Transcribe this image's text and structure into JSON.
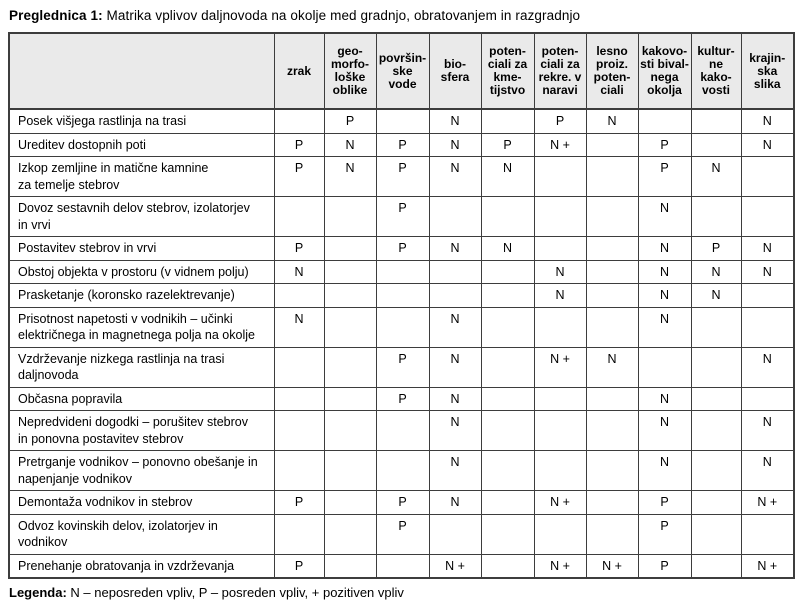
{
  "title": {
    "prefix": "Preglednica 1:",
    "text": " Matrika vplivov daljnovoda na okolje med gradnjo, obratovanjem in razgradnjo"
  },
  "colors": {
    "header_bg": "#eaeaea",
    "border": "#3d3d3d",
    "text": "#000000",
    "page_bg": "#ffffff"
  },
  "table": {
    "corner_label": "",
    "columns": [
      "zrak",
      "geo-\nmorfo-\nloške\noblike",
      "površin-\nske\nvode",
      "bio-\nsfera",
      "poten-\nciali za\nkme-\ntijstvo",
      "poten-\nciali za\nrekre. v\nnaravi",
      "lesno\nproiz.\npoten-\nciali",
      "kakovo-\nsti bival-\nnega\nokolja",
      "kultur-\nne\nkako-\nvosti",
      "krajin-\nska\nslika"
    ],
    "rows": [
      {
        "label": "Posek višjega rastlinja na trasi",
        "values": [
          "",
          "P",
          "",
          "N",
          "",
          "P",
          "N",
          "",
          "",
          "N"
        ]
      },
      {
        "label": "Ureditev dostopnih poti",
        "values": [
          "P",
          "N",
          "P",
          "N",
          "P",
          "N +",
          "",
          "P",
          "",
          "N"
        ]
      },
      {
        "label": "Izkop zemljine in matične kamnine\nza temelje stebrov",
        "values": [
          "P",
          "N",
          "P",
          "N",
          "N",
          "",
          "",
          "P",
          "N",
          ""
        ]
      },
      {
        "label": "Dovoz sestavnih delov stebrov, izolatorjev\nin vrvi",
        "values": [
          "",
          "",
          "P",
          "",
          "",
          "",
          "",
          "N",
          "",
          ""
        ]
      },
      {
        "label": "Postavitev stebrov in vrvi",
        "values": [
          "P",
          "",
          "P",
          "N",
          "N",
          "",
          "",
          "N",
          "P",
          "N"
        ]
      },
      {
        "label": "Obstoj objekta v prostoru (v vidnem polju)",
        "values": [
          "N",
          "",
          "",
          "",
          "",
          "N",
          "",
          "N",
          "N",
          "N"
        ]
      },
      {
        "label": "Prasketanje (koronsko razelektrevanje)",
        "values": [
          "",
          "",
          "",
          "",
          "",
          "N",
          "",
          "N",
          "N",
          ""
        ]
      },
      {
        "label": "Prisotnost napetosti v vodnikih – učinki\nelektričnega in magnetnega polja na okolje",
        "values": [
          "N",
          "",
          "",
          "N",
          "",
          "",
          "",
          "N",
          "",
          ""
        ]
      },
      {
        "label": "Vzdrževanje nizkega rastlinja na trasi\ndaljnovoda",
        "values": [
          "",
          "",
          "P",
          "N",
          "",
          "N +",
          "N",
          "",
          "",
          "N"
        ]
      },
      {
        "label": "Občasna popravila",
        "values": [
          "",
          "",
          "P",
          "N",
          "",
          "",
          "",
          "N",
          "",
          ""
        ]
      },
      {
        "label": "Nepredvideni dogodki – porušitev stebrov\nin ponovna postavitev stebrov",
        "values": [
          "",
          "",
          "",
          "N",
          "",
          "",
          "",
          "N",
          "",
          "N"
        ]
      },
      {
        "label": "Pretrganje vodnikov – ponovno obešanje in\nnapenjanje vodnikov",
        "values": [
          "",
          "",
          "",
          "N",
          "",
          "",
          "",
          "N",
          "",
          "N"
        ]
      },
      {
        "label": "Demontaža vodnikov in stebrov",
        "values": [
          "P",
          "",
          "P",
          "N",
          "",
          "N +",
          "",
          "P",
          "",
          "N +"
        ]
      },
      {
        "label": "Odvoz kovinskih delov, izolatorjev in\nvodnikov",
        "values": [
          "",
          "",
          "P",
          "",
          "",
          "",
          "",
          "P",
          "",
          ""
        ]
      },
      {
        "label": "Prenehanje obratovanja in vzdrževanja",
        "values": [
          "P",
          "",
          "",
          "N +",
          "",
          "N +",
          "N +",
          "P",
          "",
          "N +"
        ]
      }
    ]
  },
  "legend": {
    "prefix": "Legenda:",
    "text": " N – neposreden vpliv, P – posreden vpliv, + pozitiven vpliv"
  }
}
